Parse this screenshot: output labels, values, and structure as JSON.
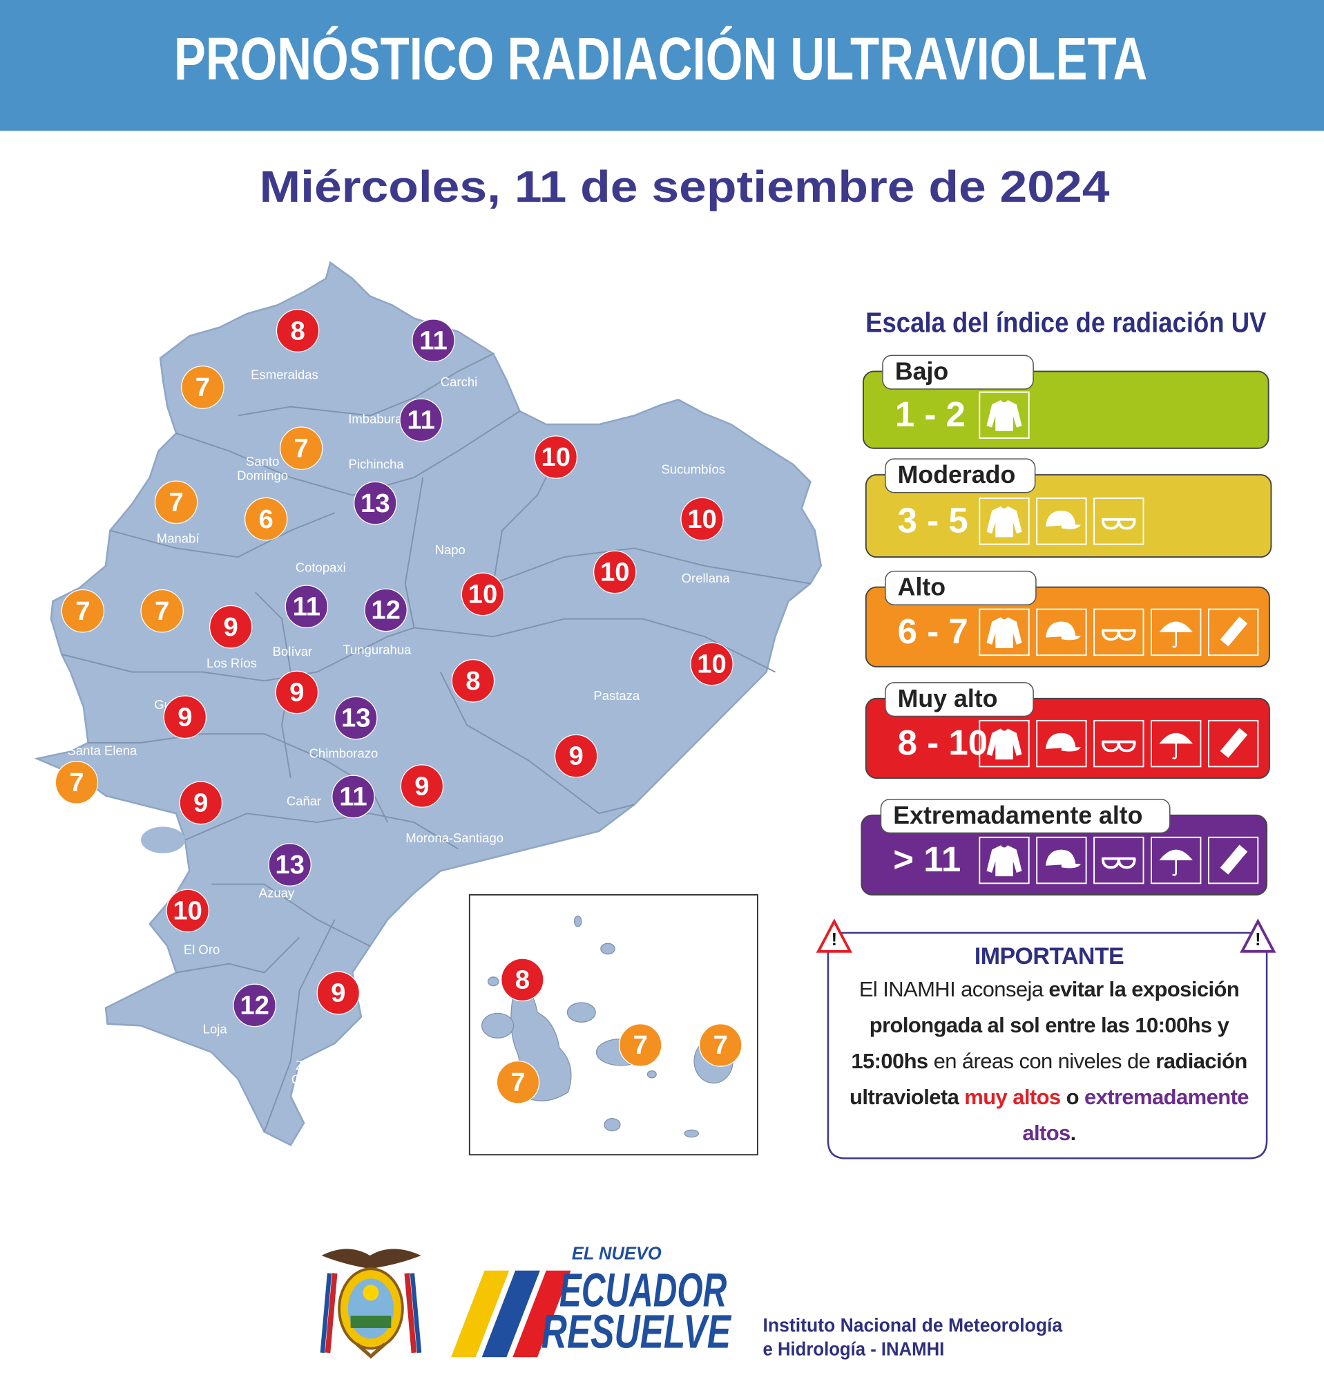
{
  "header": {
    "title": "PRONÓSTICO RADIACIÓN ULTRAVIOLETA",
    "date": "Miércoles, 11 de septiembre de 2024"
  },
  "map": {
    "provinces": [
      "Esmeraldas",
      "Carchi",
      "Imbabura",
      "Santo Domingo",
      "Pichincha",
      "Sucumbíos",
      "Manabí",
      "Napo",
      "Cotopaxi",
      "Orellana",
      "Bolívar",
      "Tungurahua",
      "Los Ríos",
      "Pastaza",
      "Santa Elena",
      "Guayas",
      "Chimborazo",
      "Cañar",
      "Morona-Santiago",
      "Azuay",
      "El Oro",
      "Loja",
      "Zamora-Chinchipe"
    ],
    "markers": [
      {
        "value": 8,
        "color": "#e31e25"
      },
      {
        "value": 11,
        "color": "#6b2c8e"
      },
      {
        "value": 7,
        "color": "#f39020"
      },
      {
        "value": 11,
        "color": "#6b2c8e"
      },
      {
        "value": 7,
        "color": "#f39020"
      },
      {
        "value": 10,
        "color": "#e31e25"
      },
      {
        "value": 7,
        "color": "#f39020"
      },
      {
        "value": 13,
        "color": "#6b2c8e"
      },
      {
        "value": 6,
        "color": "#f39020"
      },
      {
        "value": 10,
        "color": "#e31e25"
      },
      {
        "value": 10,
        "color": "#e31e25"
      },
      {
        "value": 10,
        "color": "#e31e25"
      },
      {
        "value": 7,
        "color": "#f39020"
      },
      {
        "value": 7,
        "color": "#f39020"
      },
      {
        "value": 11,
        "color": "#6b2c8e"
      },
      {
        "value": 12,
        "color": "#6b2c8e"
      },
      {
        "value": 9,
        "color": "#e31e25"
      },
      {
        "value": 10,
        "color": "#e31e25"
      },
      {
        "value": 8,
        "color": "#e31e25"
      },
      {
        "value": 9,
        "color": "#e31e25"
      },
      {
        "value": 13,
        "color": "#6b2c8e"
      },
      {
        "value": 9,
        "color": "#e31e25"
      },
      {
        "value": 9,
        "color": "#e31e25"
      },
      {
        "value": 7,
        "color": "#f39020"
      },
      {
        "value": 9,
        "color": "#e31e25"
      },
      {
        "value": 11,
        "color": "#6b2c8e"
      },
      {
        "value": 9,
        "color": "#e31e25"
      },
      {
        "value": 13,
        "color": "#6b2c8e"
      },
      {
        "value": 10,
        "color": "#e31e25"
      },
      {
        "value": 9,
        "color": "#e31e25"
      },
      {
        "value": 12,
        "color": "#6b2c8e"
      }
    ],
    "galapagos_markers": [
      {
        "value": 8,
        "color": "#e31e25"
      },
      {
        "value": 7,
        "color": "#f39020"
      },
      {
        "value": 7,
        "color": "#f39020"
      },
      {
        "value": 7,
        "color": "#f39020"
      }
    ]
  },
  "legend": {
    "title": "Escala del índice de radiación UV",
    "levels": [
      {
        "name": "Bajo",
        "range": "1 - 2",
        "color": "#a5c51c"
      },
      {
        "name": "Moderado",
        "range": "3 - 5",
        "color": "#e3c634"
      },
      {
        "name": "Alto",
        "range": "6 - 7",
        "color": "#f39020"
      },
      {
        "name": "Muy alto",
        "range": "8 - 10",
        "color": "#e31e25"
      },
      {
        "name": "Extremadamente alto",
        "range": "> 11",
        "color": "#6b2c8e"
      }
    ]
  },
  "notice": {
    "heading": "IMPORTANTE",
    "runs": [
      {
        "text": "El INAMHI aconseja ",
        "style": "normal"
      },
      {
        "text": "evitar la exposición prolongada al sol entre las 10:00hs y 15:00hs",
        "style": "bold"
      },
      {
        "text": " en áreas con niveles de ",
        "style": "normal"
      },
      {
        "text": "radiación ultravioleta ",
        "style": "bold"
      },
      {
        "text": "muy altos",
        "style": "red"
      },
      {
        "text": " o ",
        "style": "bold"
      },
      {
        "text": "extremadamente altos",
        "style": "purple"
      },
      {
        "text": ".",
        "style": "bold"
      }
    ]
  },
  "footer": {
    "brand": [
      "EL NUEVO",
      "ECUADOR",
      "RESUELVE"
    ],
    "institute": [
      "Instituto Nacional de Meteorología",
      "e Hidrología - INAMHI"
    ]
  }
}
